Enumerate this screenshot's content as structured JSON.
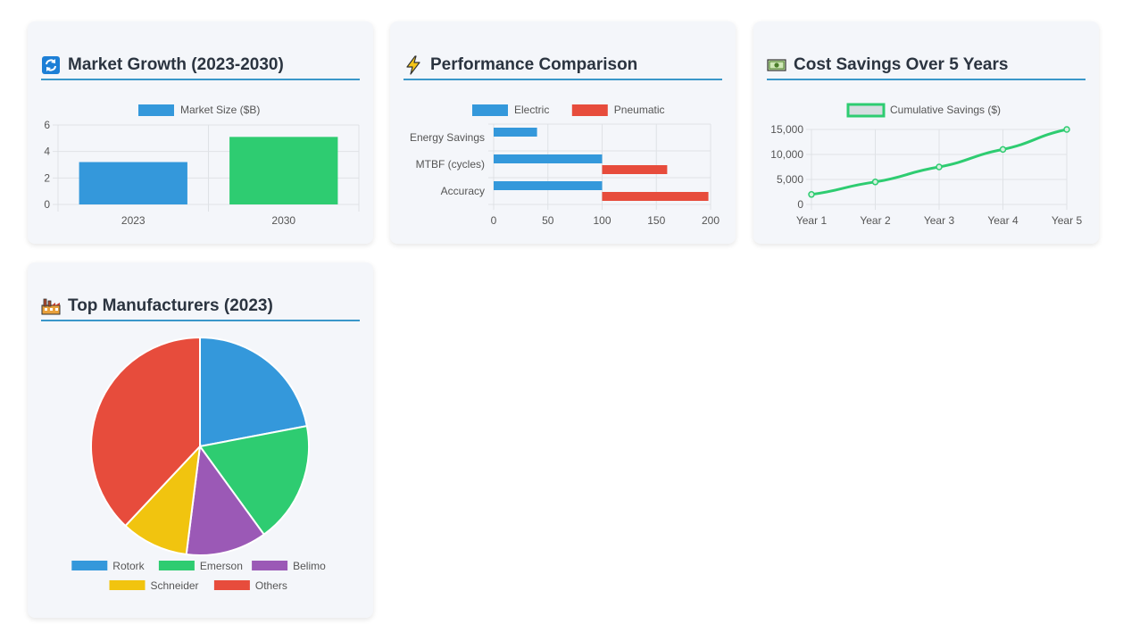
{
  "colors": {
    "blue": "#3498db",
    "green": "#2ecc71",
    "red": "#e74c3c",
    "purple": "#9b59b6",
    "yellow": "#f1c40f"
  },
  "cards": {
    "market": {
      "title": "Market Growth (2023-2030)",
      "icon": "arrows-cycle-icon"
    },
    "performance": {
      "title": "Performance Comparison",
      "icon": "lightning-icon"
    },
    "savings": {
      "title": "Cost Savings Over 5 Years",
      "icon": "money-bill-icon"
    },
    "manufacturers": {
      "title": "Top Manufacturers (2023)",
      "icon": "factory-icon"
    }
  },
  "chart_data": [
    {
      "id": "market",
      "type": "bar",
      "categories": [
        "2023",
        "2030"
      ],
      "series": [
        {
          "name": "Market Size ($B)",
          "values": [
            3.2,
            5.1
          ],
          "colors": [
            "#3498db",
            "#2ecc71"
          ]
        }
      ],
      "ylim": [
        0,
        6
      ],
      "yticks": [
        "0",
        "2",
        "4",
        "6"
      ],
      "legend": "top",
      "grid": true
    },
    {
      "id": "performance",
      "type": "bar",
      "orientation": "horizontal",
      "categories": [
        "Energy Savings",
        "MTBF (cycles)",
        "Accuracy"
      ],
      "series": [
        {
          "name": "Electric",
          "values": [
            40,
            100,
            100
          ],
          "color": "#3498db"
        },
        {
          "name": "Pneumatic",
          "values": [
            0,
            60,
            98
          ],
          "base": [
            0,
            100,
            100
          ],
          "color": "#e74c3c"
        }
      ],
      "xlim": [
        0,
        200
      ],
      "xticks": [
        "0",
        "50",
        "100",
        "150",
        "200"
      ],
      "legend": "top",
      "grid": true
    },
    {
      "id": "savings",
      "type": "line",
      "categories": [
        "Year 1",
        "Year 2",
        "Year 3",
        "Year 4",
        "Year 5"
      ],
      "series": [
        {
          "name": "Cumulative Savings ($)",
          "values": [
            2000,
            4500,
            7500,
            11000,
            15000
          ],
          "color": "#2ecc71"
        }
      ],
      "ylim": [
        0,
        15000
      ],
      "yticks": [
        "0",
        "5,000",
        "10,000",
        "15,000"
      ],
      "legend": "top",
      "grid": true
    },
    {
      "id": "manufacturers",
      "type": "pie",
      "labels": [
        "Rotork",
        "Emerson",
        "Belimo",
        "Schneider",
        "Others"
      ],
      "values": [
        22,
        18,
        12,
        10,
        38
      ],
      "colors": [
        "#3498db",
        "#2ecc71",
        "#9b59b6",
        "#f1c40f",
        "#e74c3c"
      ],
      "legend": "bottom"
    }
  ]
}
